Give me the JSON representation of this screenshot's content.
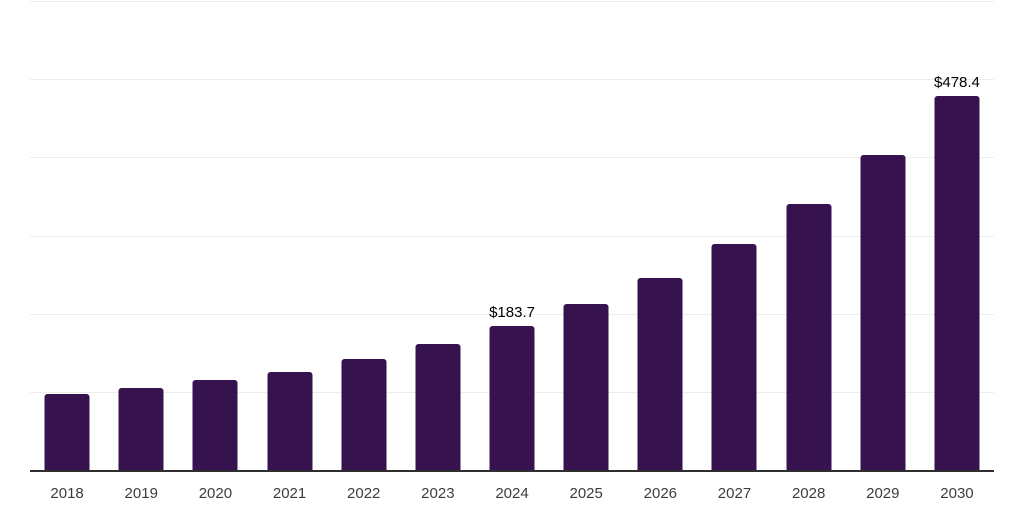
{
  "chart_data": {
    "type": "bar",
    "title": "",
    "xlabel": "",
    "ylabel": "",
    "categories": [
      "2018",
      "2019",
      "2020",
      "2021",
      "2022",
      "2023",
      "2024",
      "2025",
      "2026",
      "2027",
      "2028",
      "2029",
      "2030"
    ],
    "values": [
      96.8,
      104.9,
      114.8,
      125.8,
      141.6,
      160.8,
      183.7,
      212.0,
      246.0,
      288.7,
      339.9,
      403.5,
      478.4
    ],
    "data_labels": {
      "2024": "$183.7",
      "2030": "$478.4"
    },
    "ylim": [
      0,
      600
    ],
    "gridline_step": 100,
    "grid": true,
    "legend": "none",
    "colors": {
      "bar": "#36124F",
      "gridline": "#ededed",
      "axis": "#2e2e2e",
      "tick_label": "#3d3d3d",
      "value_label": "#000000",
      "background": "#ffffff"
    }
  }
}
